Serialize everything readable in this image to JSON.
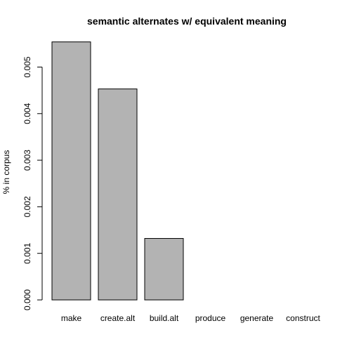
{
  "chart_data": {
    "type": "bar",
    "title": "semantic alternates w/ equivalent meaning",
    "xlabel": "",
    "ylabel": "% in corpus",
    "categories": [
      "make",
      "create.alt",
      "build.alt",
      "produce",
      "generate",
      "construct"
    ],
    "values": [
      0.00554,
      0.00453,
      0.00132,
      0.0,
      0.0,
      0.0
    ],
    "ylim": [
      0,
      0.00555
    ],
    "yticks": [
      0.0,
      0.001,
      0.002,
      0.003,
      0.004,
      0.005
    ],
    "ytick_labels": [
      "0.000",
      "0.001",
      "0.002",
      "0.003",
      "0.004",
      "0.005"
    ],
    "grid": false,
    "colors": {
      "bar_fill": "#b3b3b3",
      "bar_stroke": "#000000"
    }
  }
}
